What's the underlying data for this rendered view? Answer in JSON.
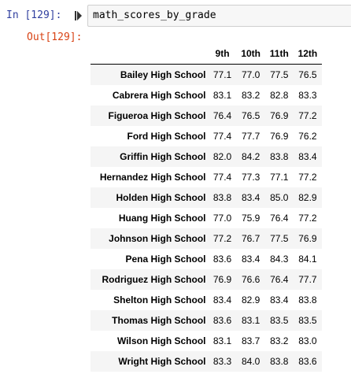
{
  "input_prompt": "In [129]:",
  "output_prompt": "Out[129]:",
  "code": "math_scores_by_grade",
  "colors": {
    "in_prompt": "#303f9f",
    "out_prompt": "#d84315",
    "code_background": "#f7f7f7",
    "row_stripe": "#f5f5f5"
  },
  "icons": {
    "run": "run-cell-icon"
  },
  "table": {
    "columns": [
      "9th",
      "10th",
      "11th",
      "12th"
    ],
    "rows": [
      {
        "school": "Bailey High School",
        "values": [
          "77.1",
          "77.0",
          "77.5",
          "76.5"
        ]
      },
      {
        "school": "Cabrera High School",
        "values": [
          "83.1",
          "83.2",
          "82.8",
          "83.3"
        ]
      },
      {
        "school": "Figueroa High School",
        "values": [
          "76.4",
          "76.5",
          "76.9",
          "77.2"
        ]
      },
      {
        "school": "Ford High School",
        "values": [
          "77.4",
          "77.7",
          "76.9",
          "76.2"
        ]
      },
      {
        "school": "Griffin High School",
        "values": [
          "82.0",
          "84.2",
          "83.8",
          "83.4"
        ]
      },
      {
        "school": "Hernandez High School",
        "values": [
          "77.4",
          "77.3",
          "77.1",
          "77.2"
        ]
      },
      {
        "school": "Holden High School",
        "values": [
          "83.8",
          "83.4",
          "85.0",
          "82.9"
        ]
      },
      {
        "school": "Huang High School",
        "values": [
          "77.0",
          "75.9",
          "76.4",
          "77.2"
        ]
      },
      {
        "school": "Johnson High School",
        "values": [
          "77.2",
          "76.7",
          "77.5",
          "76.9"
        ]
      },
      {
        "school": "Pena High School",
        "values": [
          "83.6",
          "83.4",
          "84.3",
          "84.1"
        ]
      },
      {
        "school": "Rodriguez High School",
        "values": [
          "76.9",
          "76.6",
          "76.4",
          "77.7"
        ]
      },
      {
        "school": "Shelton High School",
        "values": [
          "83.4",
          "82.9",
          "83.4",
          "83.8"
        ]
      },
      {
        "school": "Thomas High School",
        "values": [
          "83.6",
          "83.1",
          "83.5",
          "83.5"
        ]
      },
      {
        "school": "Wilson High School",
        "values": [
          "83.1",
          "83.7",
          "83.2",
          "83.0"
        ]
      },
      {
        "school": "Wright High School",
        "values": [
          "83.3",
          "84.0",
          "83.8",
          "83.6"
        ]
      }
    ]
  }
}
